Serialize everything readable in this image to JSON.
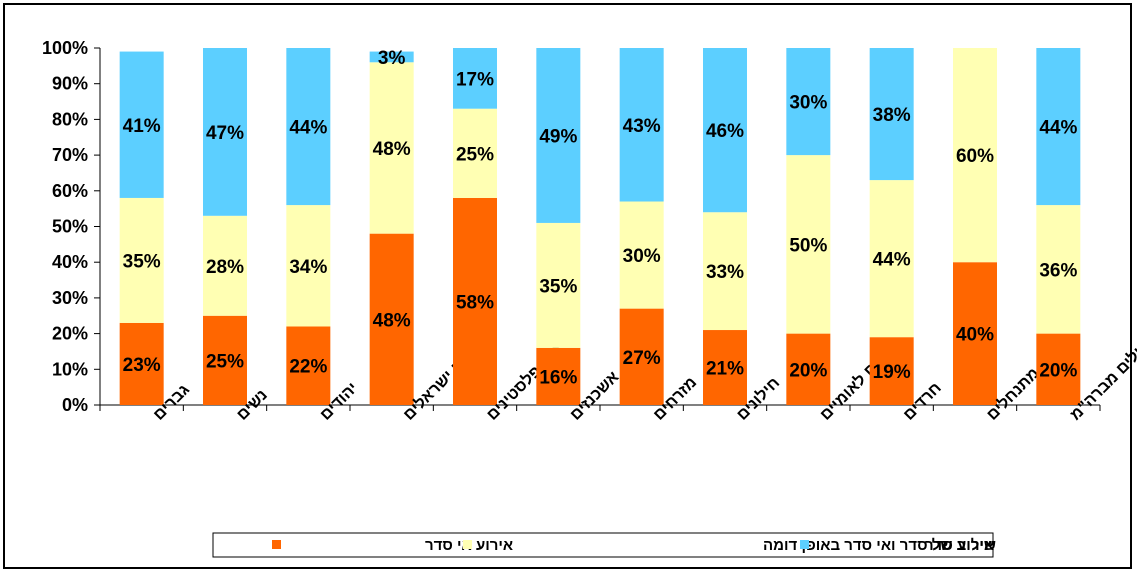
{
  "chart_data": {
    "type": "bar",
    "stacked": true,
    "percent": true,
    "categories": [
      "גברים",
      "נשים",
      "יהודים",
      "ערבים ישראלים",
      "ערבים פלסטינים",
      "אשכנזים",
      "מזרחים",
      "חילונים",
      "דתיים לאומיים",
      "חרדים",
      "מתנחלים",
      "עולים מברה\"מ"
    ],
    "series": [
      {
        "name": "אירוע אי סדר",
        "color": "#ff6600",
        "values": [
          23,
          25,
          22,
          48,
          58,
          16,
          27,
          21,
          20,
          19,
          40,
          20
        ],
        "labels": [
          "23%",
          "25%",
          "22%",
          "48%",
          "58%",
          "16%",
          "27%",
          "21%",
          "20%",
          "19%",
          "40%",
          "20%"
        ]
      },
      {
        "name": "שילוב של סדר ואי סדר באופן דומה",
        "color": "#ffffb3",
        "values": [
          35,
          28,
          34,
          48,
          25,
          35,
          30,
          33,
          50,
          44,
          60,
          36
        ],
        "labels": [
          "35%",
          "28%",
          "34%",
          "48%",
          "25%",
          "35%",
          "30%",
          "33%",
          "50%",
          "44%",
          "60%",
          "36%"
        ]
      },
      {
        "name": "אירוע סדר",
        "color": "#5ccfff",
        "values": [
          41,
          47,
          44,
          3,
          17,
          49,
          43,
          46,
          30,
          38,
          0,
          44
        ],
        "labels": [
          "41%",
          "47%",
          "44%",
          "3%",
          "17%",
          "49%",
          "43%",
          "46%",
          "30%",
          "38%",
          "",
          "44%"
        ]
      }
    ],
    "yticks": [
      "0%",
      "10%",
      "20%",
      "30%",
      "40%",
      "50%",
      "60%",
      "70%",
      "80%",
      "90%",
      "100%"
    ],
    "ylim": [
      0,
      100
    ],
    "grid": false,
    "legend": "bottom"
  }
}
